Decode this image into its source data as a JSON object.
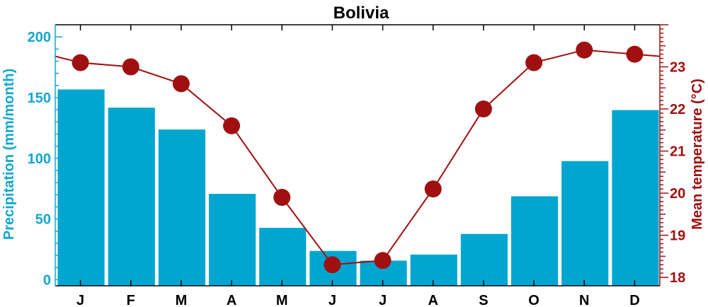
{
  "chart_data": {
    "type": "bar+line",
    "title": "Bolivia",
    "categories": [
      "J",
      "F",
      "M",
      "A",
      "M",
      "J",
      "J",
      "A",
      "S",
      "O",
      "N",
      "D"
    ],
    "series": [
      {
        "name": "Precipitation",
        "type": "bar",
        "axis": "left",
        "values": [
          157,
          142,
          124,
          71,
          43,
          24,
          16,
          21,
          38,
          69,
          98,
          140
        ]
      },
      {
        "name": "Mean temperature",
        "type": "line",
        "axis": "right",
        "values": [
          23.1,
          23.0,
          22.6,
          21.6,
          19.9,
          18.3,
          18.4,
          20.1,
          22.0,
          23.1,
          23.4,
          23.3
        ],
        "edge_start": 23.25,
        "edge_end": 23.25
      }
    ],
    "ylabel_left": "Precipitation (mm/month)",
    "ylim_left": [
      -5,
      210
    ],
    "yticks_left": [
      0,
      50,
      100,
      150,
      200
    ],
    "ylabel_right": "Mean temperature (°C)",
    "ylim_right": [
      17.8,
      24.0
    ],
    "yticks_right": [
      18,
      19,
      20,
      21,
      22,
      23
    ],
    "colors": {
      "bars": "#00a6d0",
      "bar_edge": "#ffffff",
      "line": "#a01010",
      "marker": "#a01010",
      "left_axis": "#12a7cf",
      "right_axis": "#a01010"
    },
    "grid": false,
    "legend": "none"
  }
}
